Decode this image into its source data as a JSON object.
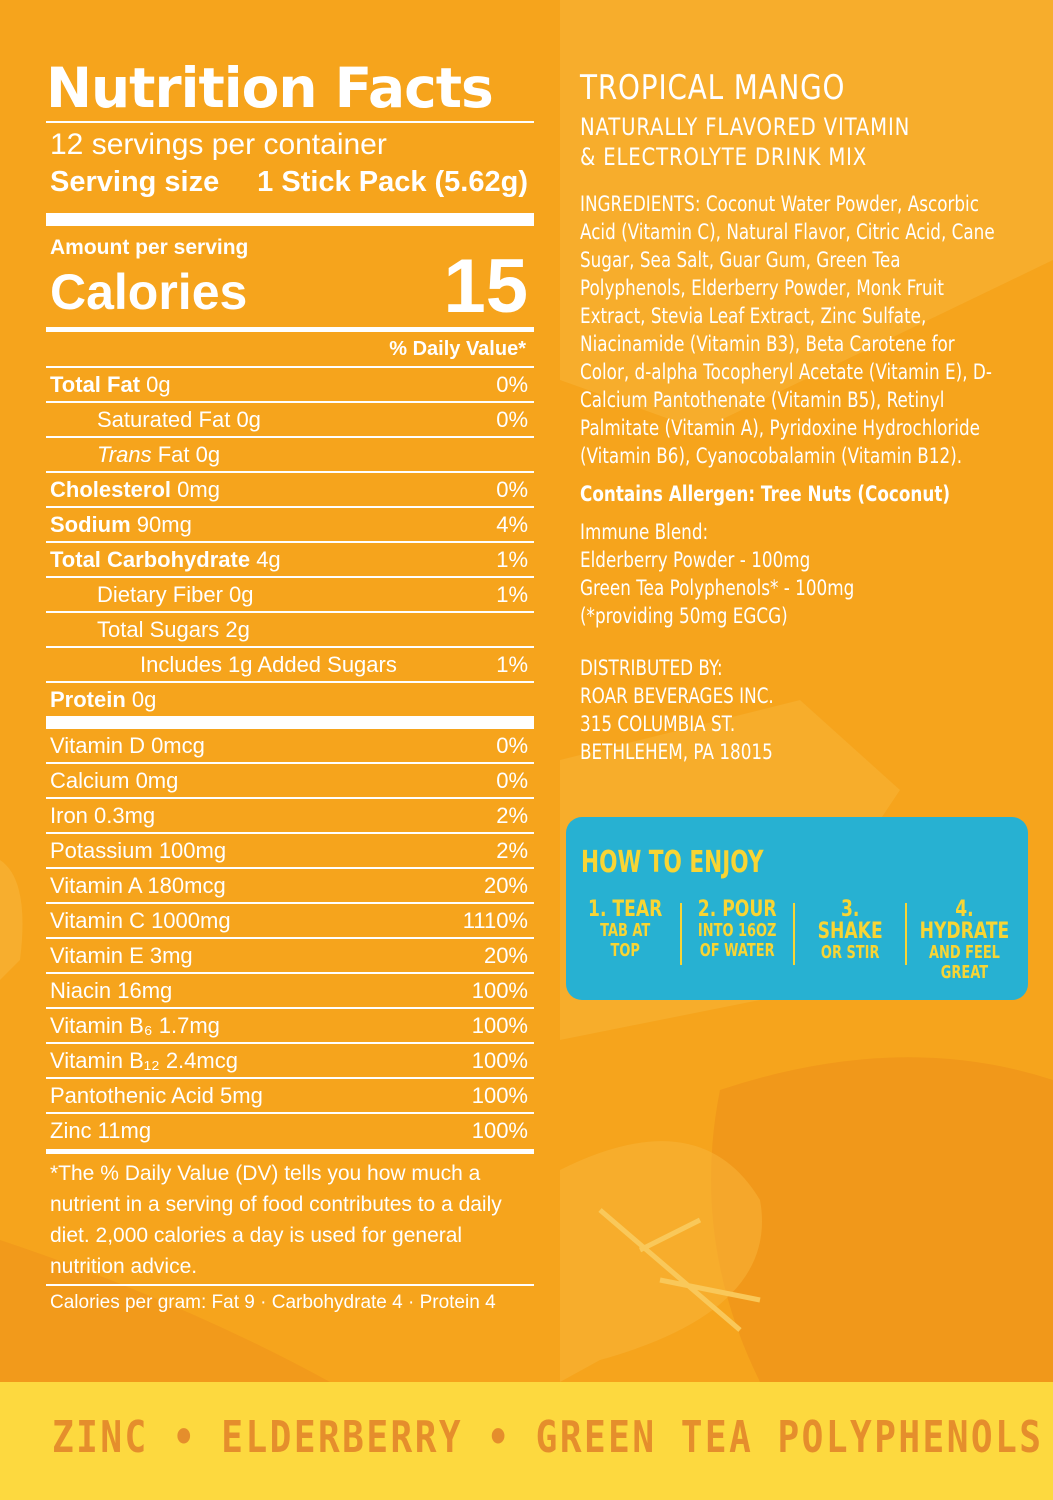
{
  "nutrition": {
    "title": "Nutrition Facts",
    "servings": "12 servings per container",
    "serving_size_label": "Serving size",
    "serving_size_value": "1 Stick Pack (5.62g)",
    "amount_per_serving": "Amount per serving",
    "calories_label": "Calories",
    "calories_value": "15",
    "dv_header": "% Daily Value*",
    "rows": [
      {
        "name": "Total Fat",
        "amount": "0g",
        "dv": "0%"
      },
      {
        "name": "Saturated Fat",
        "amount": "0g",
        "dv": "0%"
      },
      {
        "name": "Trans",
        "amount": "Fat 0g",
        "dv": ""
      },
      {
        "name": "Cholesterol",
        "amount": "0mg",
        "dv": "0%"
      },
      {
        "name": "Sodium",
        "amount": "90mg",
        "dv": "4%"
      },
      {
        "name": "Total Carbohydrate",
        "amount": "4g",
        "dv": "1%"
      },
      {
        "name": "Dietary Fiber",
        "amount": "0g",
        "dv": "1%"
      },
      {
        "name": "Total Sugars",
        "amount": "2g",
        "dv": ""
      },
      {
        "name": "Includes 1g Added Sugars",
        "amount": "",
        "dv": "1%"
      },
      {
        "name": "Protein",
        "amount": "0g",
        "dv": ""
      }
    ],
    "vitamins": [
      {
        "label": "Vitamin D 0mcg",
        "dv": "0%"
      },
      {
        "label": "Calcium 0mg",
        "dv": "0%"
      },
      {
        "label": "Iron 0.3mg",
        "dv": "2%"
      },
      {
        "label": "Potassium 100mg",
        "dv": "2%"
      },
      {
        "label": "Vitamin A 180mcg",
        "dv": "20%"
      },
      {
        "label": "Vitamin C 1000mg",
        "dv": "1110%"
      },
      {
        "label": "Vitamin E 3mg",
        "dv": "20%"
      },
      {
        "label": "Niacin 16mg",
        "dv": "100%"
      },
      {
        "label": "Vitamin B₆ 1.7mg",
        "dv": "100%"
      },
      {
        "label": "Vitamin B₁₂ 2.4mcg",
        "dv": "100%"
      },
      {
        "label": "Pantothenic Acid 5mg",
        "dv": "100%"
      },
      {
        "label": "Zinc 11mg",
        "dv": "100%"
      }
    ],
    "footnote": "*The % Daily Value (DV) tells you how much a nutrient in a serving of food contributes to a daily diet. 2,000 calories a day is used for general nutrition advice.",
    "calories_per_gram": "Calories per gram: Fat 9 · Carbohydrate 4 · Protein 4"
  },
  "product": {
    "title": "TROPICAL MANGO",
    "subtitle_line1": "NATURALLY FLAVORED VITAMIN",
    "subtitle_line2": "& ELECTROLYTE DRINK MIX",
    "ingredients": "INGREDIENTS: Coconut Water Powder, Ascorbic Acid (Vitamin C), Natural Flavor, Citric Acid, Cane Sugar, Sea Salt, Guar Gum, Green Tea Polyphenols, Elderberry Powder, Monk Fruit Extract, Stevia Leaf Extract, Zinc Sulfate, Niacinamide (Vitamin B3), Beta Carotene for Color, d-alpha Tocopheryl Acetate (Vitamin E), D-Calcium Pantothenate (Vitamin B5), Retinyl Palmitate (Vitamin A), Pyridoxine Hydrochloride (Vitamin B6), Cyanocobalamin (Vitamin B12).",
    "allergen": "Contains Allergen: Tree Nuts (Coconut)",
    "blend_title": "Immune Blend:",
    "blend_line1": "Elderberry Powder - 100mg",
    "blend_line2": "Green Tea Polyphenols* - 100mg",
    "blend_line3": "(*providing 50mg EGCG)",
    "distributor_label": "DISTRIBUTED BY:",
    "distributor_name": "ROAR BEVERAGES INC.",
    "distributor_street": "315 COLUMBIA ST.",
    "distributor_city": "BETHLEHEM, PA 18015"
  },
  "how_to_enjoy": {
    "title": "HOW TO ENJOY",
    "steps": [
      {
        "num": "1. TEAR",
        "line1": "TAB AT TOP",
        "line2": ""
      },
      {
        "num": "2. POUR",
        "line1": "INTO 16OZ",
        "line2": "OF WATER"
      },
      {
        "num": "3. SHAKE",
        "line1": "OR STIR",
        "line2": ""
      },
      {
        "num": "4. HYDRATE",
        "line1": "AND FEEL",
        "line2": "GREAT"
      }
    ]
  },
  "banner": {
    "text": "ZINC • ELDERBERRY • GREEN TEA POLYPHENOLS"
  },
  "colors": {
    "panel": "#f6a41c",
    "art_light": "#f8b53a",
    "art_dark": "#f0951a",
    "how_bg": "#27b1d2",
    "how_text": "#f8d534",
    "banner_bg": "#fdd93f",
    "banner_text": "#e58e2c"
  }
}
